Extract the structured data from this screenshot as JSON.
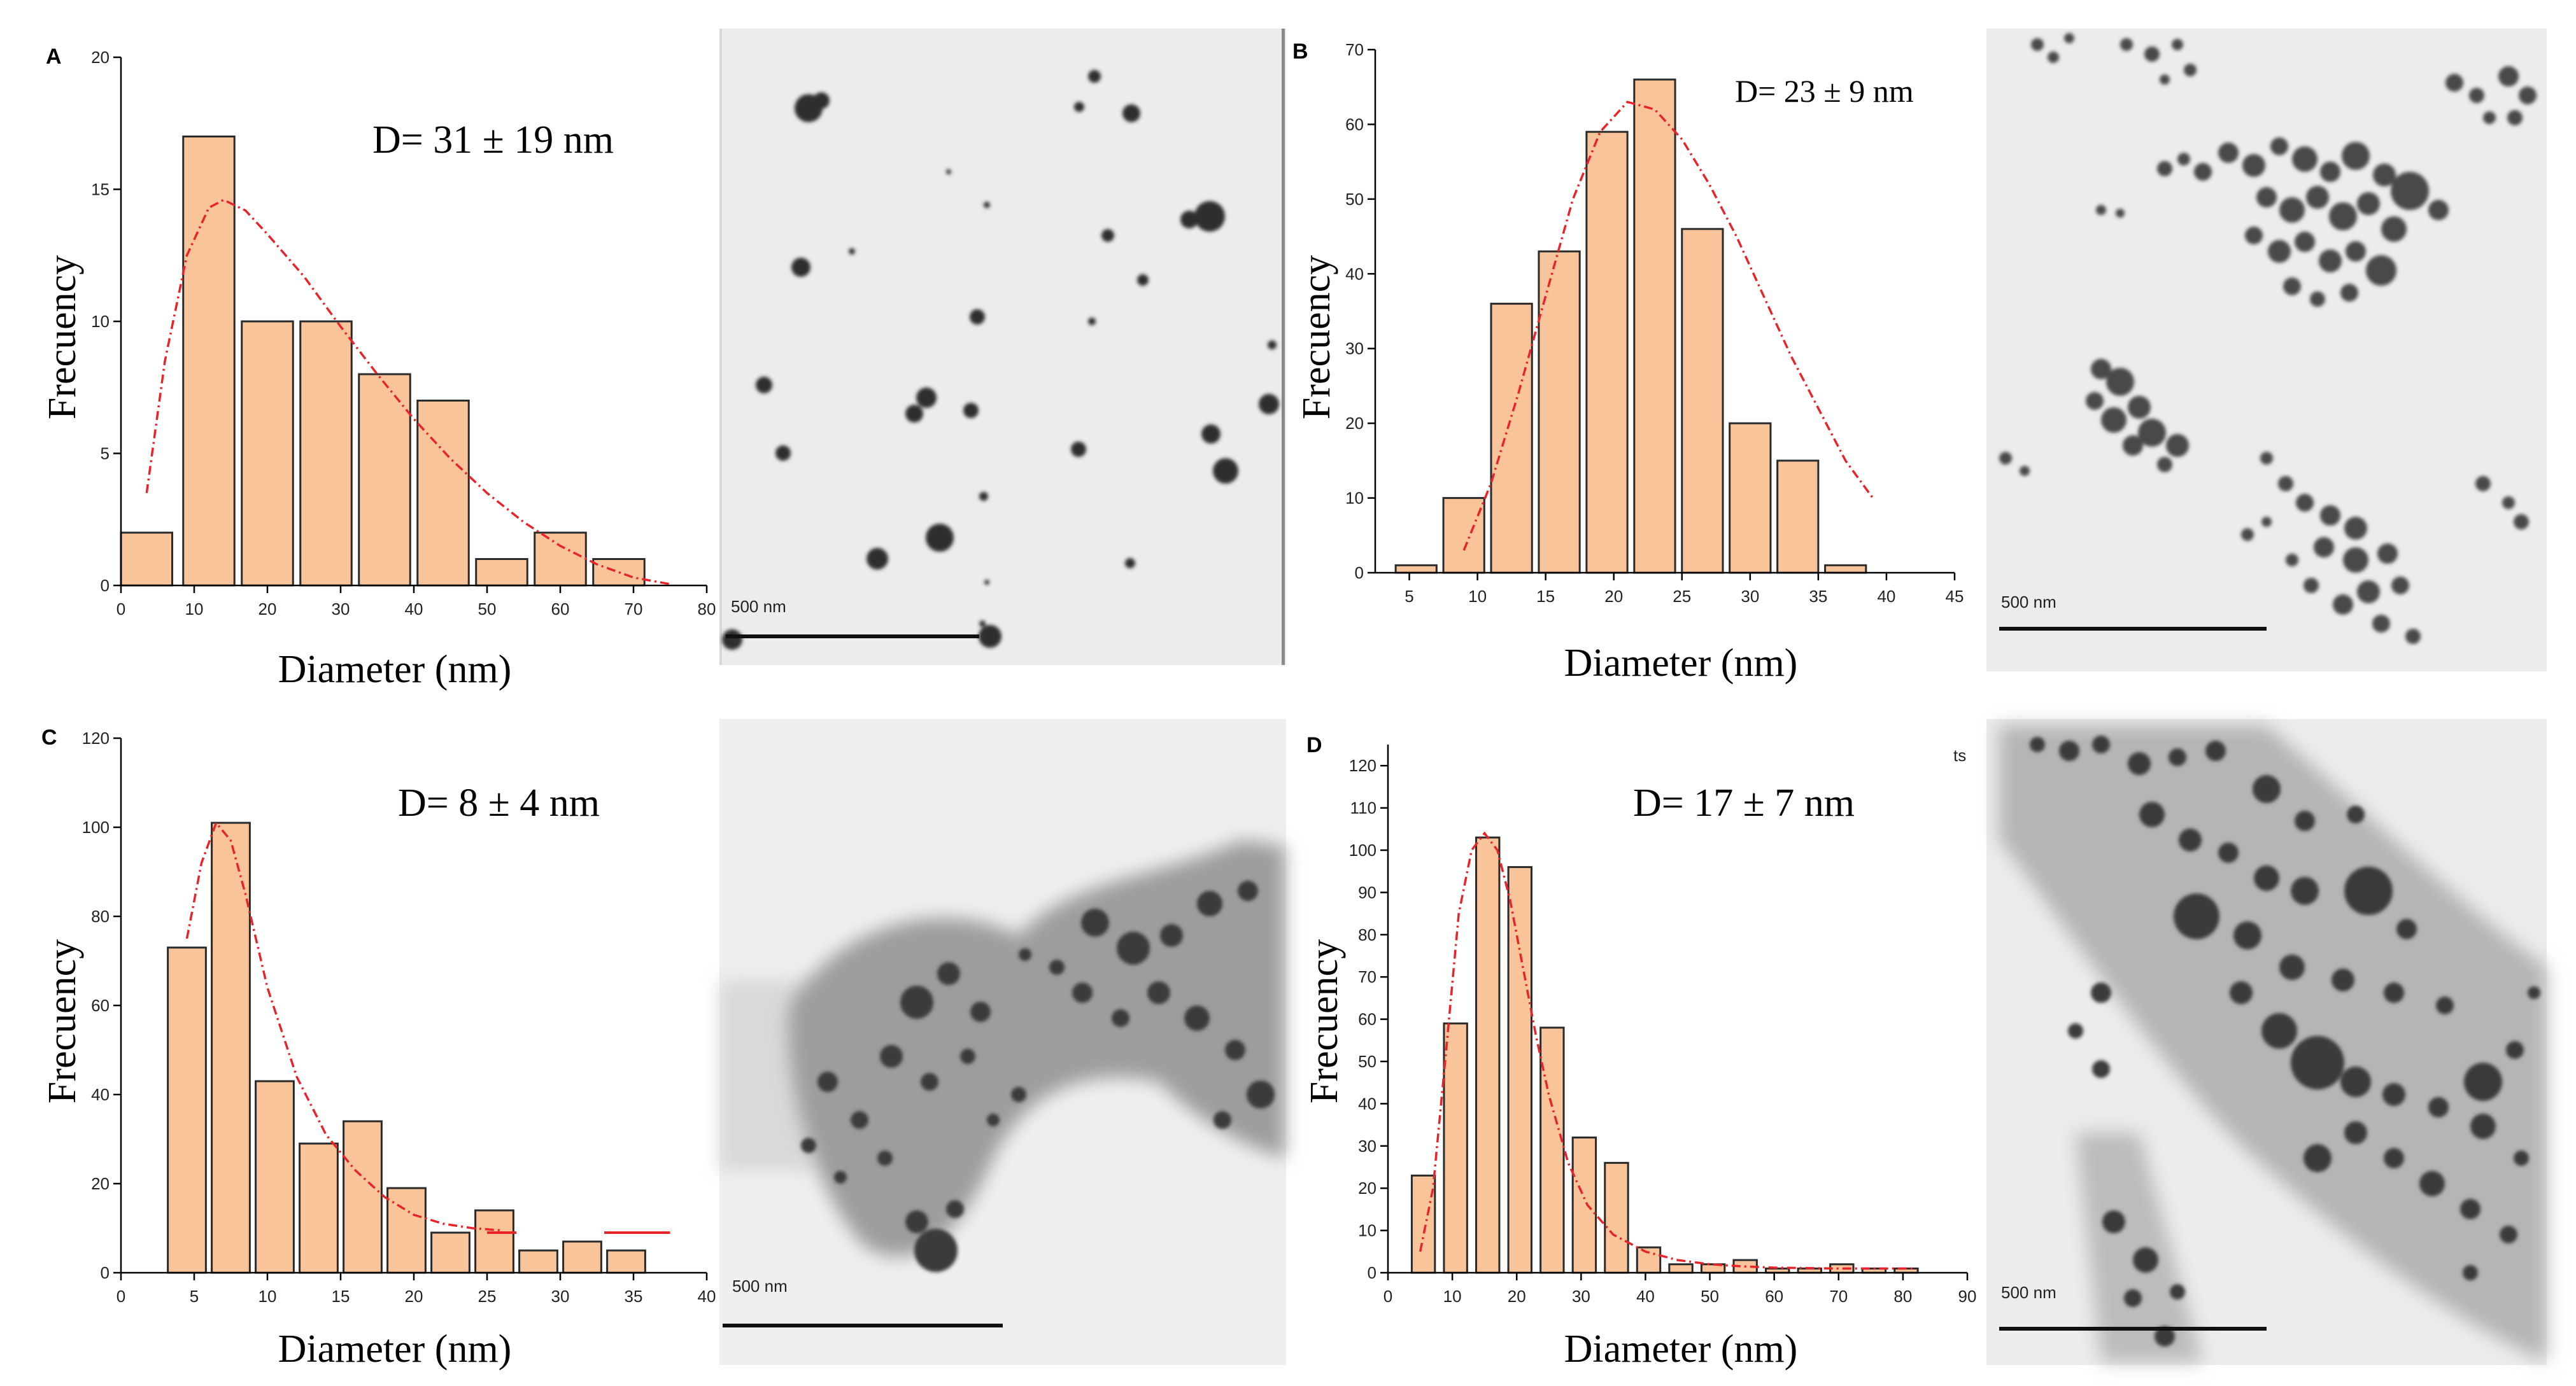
{
  "chart_data": [
    {
      "type": "bar",
      "panel": "A",
      "title": "D= 31 ± 19 nm",
      "xlabel": "Diameter (nm)",
      "ylabel": "Frecuency",
      "xlim": [
        0,
        80
      ],
      "ylim": [
        0,
        20
      ],
      "xticks": [
        0,
        10,
        20,
        30,
        40,
        50,
        60,
        70,
        80
      ],
      "yticks": [
        0,
        5,
        10,
        15,
        20
      ],
      "bins": [
        [
          0,
          7
        ],
        [
          8.5,
          15.5
        ],
        [
          16.5,
          23.5
        ],
        [
          24.5,
          31.5
        ],
        [
          32.5,
          39.5
        ],
        [
          40.5,
          47.5
        ],
        [
          48.5,
          55.5
        ],
        [
          56.5,
          63.5
        ],
        [
          64.5,
          71.5
        ]
      ],
      "values": [
        2,
        17,
        10,
        10,
        8,
        7,
        1,
        2,
        1
      ],
      "fit": {
        "x": [
          3.5,
          6,
          9,
          12,
          14,
          17,
          20,
          25,
          30,
          35,
          40,
          45,
          50,
          55,
          60,
          65,
          70,
          75
        ],
        "y": [
          3.5,
          8.5,
          12.5,
          14.3,
          14.6,
          14.2,
          13.3,
          11.7,
          9.8,
          8.0,
          6.3,
          4.8,
          3.5,
          2.4,
          1.5,
          0.8,
          0.3,
          0.05
        ]
      },
      "scale_bar": "500 nm"
    },
    {
      "type": "bar",
      "panel": "B",
      "title": "D= 23 ± 9 nm",
      "xlabel": "Diameter (nm)",
      "ylabel": "Frecuency",
      "xlim": [
        2.5,
        45
      ],
      "ylim": [
        0,
        70
      ],
      "xticks": [
        5,
        10,
        15,
        20,
        25,
        30,
        35,
        40,
        45
      ],
      "yticks": [
        0,
        10,
        20,
        30,
        40,
        50,
        60,
        70
      ],
      "bins": [
        [
          4,
          7
        ],
        [
          7.5,
          10.5
        ],
        [
          11,
          14
        ],
        [
          14.5,
          17.5
        ],
        [
          18,
          21
        ],
        [
          21.5,
          24.5
        ],
        [
          25,
          28
        ],
        [
          28.5,
          31.5
        ],
        [
          32,
          35
        ],
        [
          35.5,
          38.5
        ]
      ],
      "values": [
        1,
        10,
        36,
        43,
        59,
        66,
        46,
        20,
        15,
        1
      ],
      "fit": {
        "x": [
          9,
          11,
          13,
          15,
          17,
          19,
          21,
          23,
          25,
          27,
          29,
          31,
          33,
          35,
          37,
          39
        ],
        "y": [
          3,
          12,
          24,
          37,
          50,
          59,
          63,
          62,
          58,
          52,
          45,
          37,
          29,
          22,
          15,
          10
        ]
      },
      "scale_bar": "500 nm"
    },
    {
      "type": "bar",
      "panel": "C",
      "title": "D= 8 ± 4 nm",
      "xlabel": "Diameter (nm)",
      "ylabel": "Frecuency",
      "xlim": [
        0,
        40
      ],
      "ylim": [
        0,
        120
      ],
      "xticks": [
        0,
        5,
        10,
        15,
        20,
        25,
        30,
        35,
        40
      ],
      "yticks": [
        0,
        20,
        40,
        60,
        80,
        100,
        120
      ],
      "bins": [
        [
          3.2,
          5.8
        ],
        [
          6.2,
          8.8
        ],
        [
          9.2,
          11.8
        ],
        [
          12.2,
          14.8
        ],
        [
          15.2,
          17.8
        ],
        [
          18.2,
          20.8
        ],
        [
          21.2,
          23.8
        ],
        [
          24.2,
          26.8
        ],
        [
          27.2,
          29.8
        ],
        [
          30.2,
          32.8
        ],
        [
          33.2,
          35.8
        ]
      ],
      "values": [
        73,
        101,
        43,
        29,
        34,
        19,
        9,
        14,
        5,
        7,
        5
      ],
      "fit": {
        "x": [
          4.5,
          5.5,
          6.5,
          7.5,
          8.5,
          10,
          12,
          14,
          16,
          18,
          20,
          22,
          24,
          26
        ],
        "y": [
          75,
          92,
          101,
          97,
          85,
          64,
          44,
          31,
          23,
          17,
          13,
          11,
          10,
          9.5
        ]
      },
      "fit_tail": [
        {
          "x": [
            25,
            27
          ],
          "y": 9
        },
        {
          "x": [
            33,
            37.5
          ],
          "y": 9
        }
      ],
      "scale_bar": "500 nm"
    },
    {
      "type": "bar",
      "panel": "D",
      "title": "D= 17 ± 7 nm",
      "xlabel": "Diameter (nm)",
      "ylabel": "Frecuency",
      "xlim": [
        0,
        90
      ],
      "ylim": [
        0,
        125
      ],
      "xticks": [
        0,
        10,
        20,
        30,
        40,
        50,
        60,
        70,
        80,
        90
      ],
      "yticks": [
        0,
        10,
        20,
        30,
        40,
        50,
        60,
        70,
        80,
        90,
        100,
        110,
        120
      ],
      "bins": [
        [
          3.7,
          7.3
        ],
        [
          8.7,
          12.3
        ],
        [
          13.7,
          17.3
        ],
        [
          18.7,
          22.3
        ],
        [
          23.7,
          27.3
        ],
        [
          28.7,
          32.3
        ],
        [
          33.7,
          37.3
        ],
        [
          38.7,
          42.3
        ],
        [
          43.7,
          47.3
        ],
        [
          48.7,
          52.3
        ],
        [
          53.7,
          57.3
        ],
        [
          58.7,
          62.3
        ],
        [
          63.7,
          67.3
        ],
        [
          68.7,
          72.3
        ],
        [
          73.7,
          77.3
        ],
        [
          78.7,
          82.3
        ]
      ],
      "values": [
        23,
        59,
        103,
        96,
        58,
        32,
        26,
        6,
        2,
        2,
        3,
        1,
        1,
        2,
        1,
        1
      ],
      "fit": {
        "x": [
          5,
          7,
          9,
          11,
          13,
          15,
          17,
          19,
          21,
          23,
          25,
          28,
          31,
          35,
          40,
          45,
          50,
          55,
          60,
          70,
          82
        ],
        "y": [
          5,
          20,
          52,
          85,
          100,
          104,
          100,
          88,
          72,
          56,
          42,
          26,
          16,
          9,
          5,
          3,
          2,
          1.5,
          1.2,
          1,
          1
        ]
      },
      "scale_bar": "500 nm"
    }
  ],
  "stray_text": "ts"
}
